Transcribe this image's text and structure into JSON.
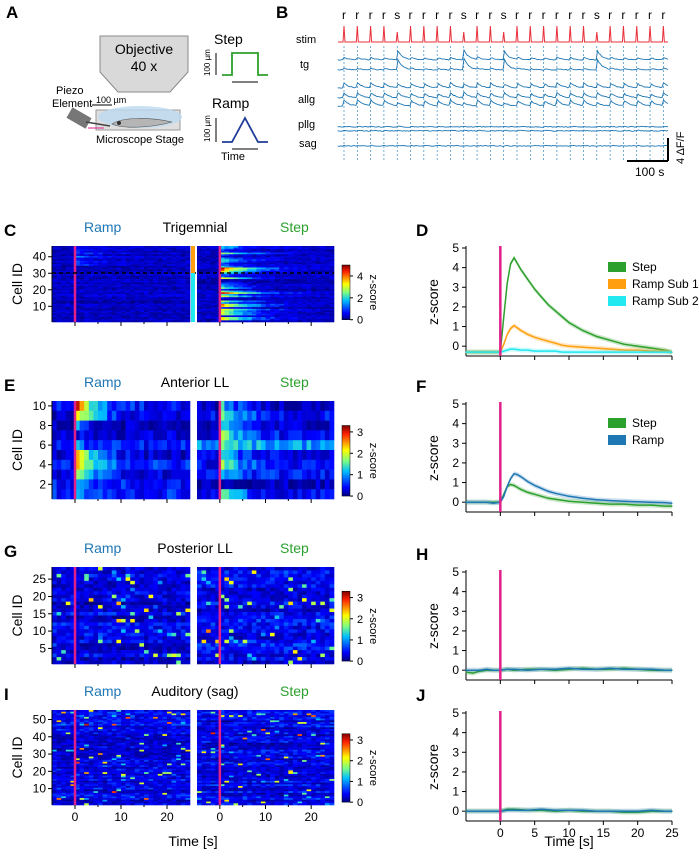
{
  "panels": {
    "A": {
      "label": "A",
      "objective_line1": "Objective",
      "objective_line2": "40 x",
      "piezo_line1": "Piezo",
      "piezo_line2": "Element",
      "scale_100um": "100 µm",
      "stage": "Microscope Stage",
      "step_title": "Step",
      "ramp_title": "Ramp",
      "step_ylabel": "100 µm",
      "ramp_ylabel": "100 µm",
      "time_label": "Time"
    },
    "B": {
      "label": "B",
      "stim_sequence": [
        "r",
        "r",
        "r",
        "r",
        "s",
        "r",
        "r",
        "r",
        "r",
        "s",
        "r",
        "r",
        "s",
        "r",
        "r",
        "r",
        "r",
        "r",
        "r",
        "s",
        "r",
        "r",
        "r",
        "r",
        "r"
      ],
      "trace_labels": [
        "stim",
        "tg",
        "allg",
        "pllg",
        "sag"
      ],
      "scale_y": "4 ΔF/F",
      "scale_x": "100 s"
    },
    "C": {
      "label": "C",
      "title": "Trigemnial",
      "left": "Ramp",
      "right": "Step",
      "ylabel": "Cell ID",
      "yticks": [
        "40",
        "30",
        "20",
        "10"
      ],
      "cbar_label": "z-score",
      "cbar_ticks": [
        "4",
        "2",
        "0"
      ]
    },
    "E": {
      "label": "E",
      "title": "Anterior LL",
      "left": "Ramp",
      "right": "Step",
      "ylabel": "Cell ID",
      "yticks": [
        "10",
        "8",
        "6",
        "4",
        "2"
      ],
      "cbar_label": "z-score",
      "cbar_ticks": [
        "3",
        "2",
        "1",
        "0"
      ]
    },
    "G": {
      "label": "G",
      "title": "Posterior LL",
      "left": "Ramp",
      "right": "Step",
      "ylabel": "Cell ID",
      "yticks": [
        "25",
        "20",
        "15",
        "10",
        "5"
      ],
      "cbar_label": "z-score",
      "cbar_ticks": [
        "3",
        "2",
        "1",
        "0"
      ]
    },
    "I": {
      "label": "I",
      "title": "Auditory (sag)",
      "left": "Ramp",
      "right": "Step",
      "ylabel": "Cell ID",
      "yticks": [
        "50",
        "40",
        "30",
        "20",
        "10"
      ],
      "cbar_label": "z-score",
      "cbar_ticks": [
        "3",
        "2",
        "1",
        "0"
      ],
      "xticks_left": [
        "0",
        "10",
        "20"
      ],
      "xticks_right": [
        "0",
        "10",
        "20"
      ],
      "xlabel": "Time [s]"
    },
    "D": {
      "label": "D",
      "ylabel": "z-score"
    },
    "F": {
      "label": "F",
      "ylabel": "z-score"
    },
    "H": {
      "label": "H",
      "ylabel": "z-score"
    },
    "J": {
      "label": "J",
      "ylabel": "z-score",
      "xlabel": "Time [s]"
    }
  },
  "colors": {
    "stim": "#e8303a",
    "trace": "#1f77b4",
    "magenta": "#e0218a",
    "step": "#2ca02c",
    "ramp_sub1": "#ff9f10",
    "ramp_sub2": "#22e8f0",
    "ramp": "#1f77b4"
  },
  "chart_data": [
    {
      "type": "line",
      "panel": "D",
      "x": [
        -5,
        -4,
        -3,
        -2,
        -1,
        0,
        0.5,
        1,
        1.5,
        2,
        3,
        4,
        5,
        6,
        7,
        8,
        9,
        10,
        12,
        14,
        16,
        18,
        20,
        22,
        24,
        25
      ],
      "series": [
        {
          "name": "Step",
          "values": [
            -0.3,
            -0.3,
            -0.3,
            -0.3,
            -0.3,
            -0.3,
            1.5,
            3.2,
            4.2,
            4.5,
            3.9,
            3.4,
            2.9,
            2.5,
            2.1,
            1.8,
            1.5,
            1.2,
            0.8,
            0.5,
            0.3,
            0.1,
            0.0,
            -0.1,
            -0.2,
            -0.3
          ]
        },
        {
          "name": "Ramp Sub 1",
          "values": [
            -0.3,
            -0.3,
            -0.3,
            -0.3,
            -0.3,
            -0.3,
            0.1,
            0.6,
            0.9,
            1.05,
            0.8,
            0.6,
            0.45,
            0.35,
            0.25,
            0.15,
            0.05,
            0.0,
            -0.05,
            -0.1,
            -0.15,
            -0.2,
            -0.2,
            -0.25,
            -0.25,
            -0.3
          ]
        },
        {
          "name": "Ramp Sub 2",
          "values": [
            -0.3,
            -0.3,
            -0.3,
            -0.3,
            -0.3,
            -0.3,
            -0.25,
            -0.2,
            -0.15,
            -0.15,
            -0.2,
            -0.2,
            -0.25,
            -0.25,
            -0.25,
            -0.25,
            -0.3,
            -0.3,
            -0.3,
            -0.3,
            -0.3,
            -0.3,
            -0.3,
            -0.3,
            -0.3,
            -0.3
          ]
        }
      ],
      "xlim": [
        -5,
        25
      ],
      "ylim": [
        -0.5,
        5
      ],
      "yticks": [
        0,
        1,
        2,
        3,
        4,
        5
      ],
      "legend": [
        "Step",
        "Ramp Sub 1",
        "Ramp Sub 2"
      ],
      "ylabel": "z-score"
    },
    {
      "type": "line",
      "panel": "F",
      "x": [
        -5,
        -4,
        -3,
        -2,
        -1,
        0,
        0.5,
        1,
        1.5,
        2,
        2.5,
        3,
        4,
        5,
        6,
        7,
        8,
        10,
        12,
        14,
        16,
        18,
        20,
        22,
        24,
        25
      ],
      "series": [
        {
          "name": "Step",
          "values": [
            0,
            0,
            0,
            0,
            0,
            0,
            0.4,
            0.8,
            0.9,
            0.85,
            0.75,
            0.65,
            0.5,
            0.4,
            0.3,
            0.2,
            0.15,
            0.05,
            0.0,
            -0.05,
            -0.1,
            -0.1,
            -0.15,
            -0.15,
            -0.2,
            -0.2
          ]
        },
        {
          "name": "Ramp",
          "values": [
            0,
            0,
            0,
            0,
            -0.05,
            0,
            0.3,
            0.8,
            1.2,
            1.45,
            1.4,
            1.3,
            1.05,
            0.85,
            0.7,
            0.55,
            0.45,
            0.3,
            0.2,
            0.12,
            0.08,
            0.05,
            0.02,
            0.0,
            -0.02,
            -0.05
          ]
        }
      ],
      "xlim": [
        -5,
        25
      ],
      "ylim": [
        -0.5,
        5
      ],
      "yticks": [
        0,
        1,
        2,
        3,
        4,
        5
      ],
      "legend": [
        "Step",
        "Ramp"
      ],
      "ylabel": "z-score"
    },
    {
      "type": "line",
      "panel": "H",
      "x": [
        -5,
        -4,
        -3,
        -2,
        -1,
        0,
        1,
        2,
        4,
        6,
        8,
        10,
        12,
        14,
        16,
        18,
        20,
        22,
        24,
        25
      ],
      "series": [
        {
          "name": "Step",
          "values": [
            -0.1,
            -0.15,
            -0.05,
            0,
            0,
            0,
            0.05,
            0.0,
            0.05,
            0.05,
            0.0,
            0.05,
            0.1,
            0.05,
            0.05,
            0.1,
            0.05,
            0.0,
            0.0,
            0.0
          ]
        },
        {
          "name": "Ramp",
          "values": [
            0,
            0,
            0,
            0.05,
            0,
            0,
            0.05,
            0.05,
            0,
            0.05,
            0.05,
            0.1,
            0.05,
            0.05,
            0.1,
            0.05,
            0.05,
            0.05,
            0,
            0
          ]
        }
      ],
      "xlim": [
        -5,
        25
      ],
      "ylim": [
        -0.5,
        5
      ],
      "yticks": [
        0,
        1,
        2,
        3,
        4,
        5
      ],
      "ylabel": "z-score"
    },
    {
      "type": "line",
      "panel": "J",
      "x": [
        -5,
        -4,
        -3,
        -2,
        -1,
        0,
        1,
        2,
        4,
        6,
        8,
        10,
        12,
        14,
        16,
        18,
        20,
        22,
        24,
        25
      ],
      "series": [
        {
          "name": "Step",
          "values": [
            0,
            0,
            0,
            0,
            0,
            0,
            0.1,
            0.1,
            0.05,
            0.05,
            0.0,
            0.05,
            0.0,
            0.0,
            0.0,
            -0.05,
            -0.05,
            0,
            0,
            0
          ]
        },
        {
          "name": "Ramp",
          "values": [
            0,
            0,
            0,
            0,
            0,
            0,
            0.05,
            0.05,
            0.05,
            0.1,
            0.05,
            0.05,
            0.05,
            0.0,
            0.0,
            0.0,
            0.0,
            0.05,
            0,
            0
          ]
        }
      ],
      "xlim": [
        -5,
        25
      ],
      "ylim": [
        -0.5,
        5
      ],
      "yticks": [
        0,
        1,
        2,
        3,
        4,
        5
      ],
      "xticks": [
        0,
        5,
        10,
        15,
        20,
        25
      ],
      "xlabel": "Time [s]",
      "ylabel": "z-score"
    }
  ]
}
